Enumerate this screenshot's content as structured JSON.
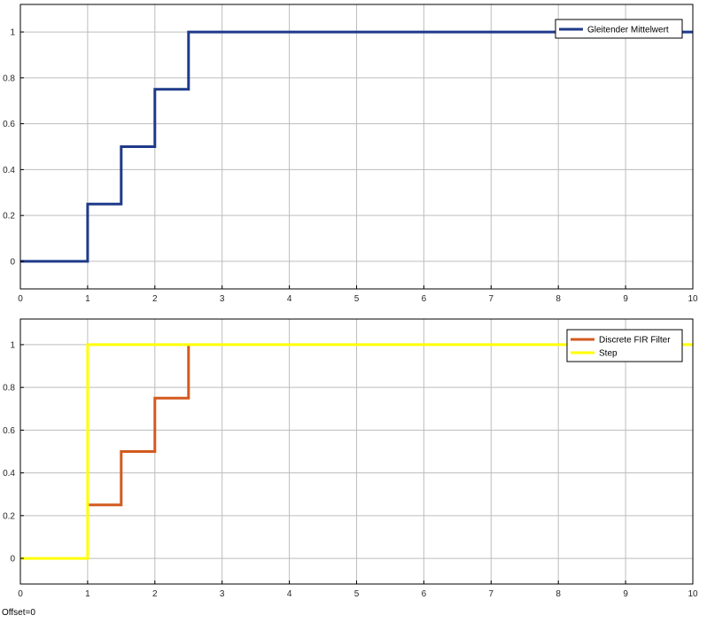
{
  "chart_data": [
    {
      "type": "line",
      "step": true,
      "xlim": [
        0,
        10
      ],
      "ylim": [
        -0.12,
        1.12
      ],
      "xticks": [
        0,
        1,
        2,
        3,
        4,
        5,
        6,
        7,
        8,
        9,
        10
      ],
      "yticks": [
        0,
        0.2,
        0.4,
        0.6,
        0.8,
        1
      ],
      "grid": true,
      "legend_position": "top-right",
      "series": [
        {
          "name": "Gleitender Mittelwert",
          "color": "#1f3a8a",
          "x": [
            0,
            1,
            1,
            1.5,
            1.5,
            2,
            2,
            2.5,
            2.5,
            10
          ],
          "y": [
            0,
            0,
            0.25,
            0.25,
            0.5,
            0.5,
            0.75,
            0.75,
            1,
            1
          ]
        }
      ]
    },
    {
      "type": "line",
      "step": true,
      "xlim": [
        0,
        10
      ],
      "ylim": [
        -0.12,
        1.12
      ],
      "xticks": [
        0,
        1,
        2,
        3,
        4,
        5,
        6,
        7,
        8,
        9,
        10
      ],
      "yticks": [
        0,
        0.2,
        0.4,
        0.6,
        0.8,
        1
      ],
      "grid": true,
      "legend_position": "top-right",
      "series": [
        {
          "name": "Discrete FIR Filter",
          "color": "#d35a1f",
          "x": [
            1,
            1.5,
            1.5,
            2,
            2,
            2.5,
            2.5
          ],
          "y": [
            0.25,
            0.25,
            0.5,
            0.5,
            0.75,
            0.75,
            1
          ]
        },
        {
          "name": "Step",
          "color": "#ffff00",
          "x": [
            0,
            1,
            1,
            10
          ],
          "y": [
            0,
            0,
            1,
            1
          ]
        }
      ]
    }
  ],
  "status_text": "Offset=0"
}
